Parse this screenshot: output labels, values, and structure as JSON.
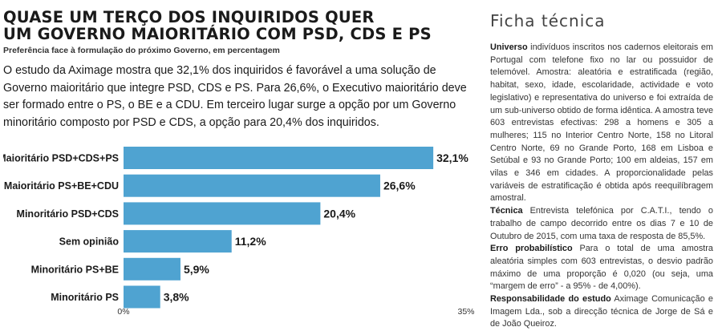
{
  "header": {
    "title_line1": "Quase um terço dos inquiridos quer",
    "title_line2": "um Governo maioritário com PSD, CDS e PS",
    "subtitle": "Preferência face à formulação do próximo Governo, em percentagem"
  },
  "intro": "O estudo da Aximage mostra que 32,1% dos inquiridos é favorável a uma solução de Governo maioritário que integre PSD, CDS e PS. Para 26,6%, o Executivo maioritário deve ser formado entre o PS, o BE e a CDU. Em terceiro lugar surge a opção por um Governo minoritário composto por PSD e CDS, a opção para 20,4% dos inquiridos.",
  "chart_data": {
    "type": "bar",
    "orientation": "horizontal",
    "title": "Preferência face à formulação do próximo Governo, em percentagem",
    "categories": [
      "Maioritário PSD+CDS+PS",
      "Maioritário PS+BE+CDU",
      "Minoritário PSD+CDS",
      "Sem opinião",
      "Minoritário PS+BE",
      "Minoritário PS"
    ],
    "values": [
      32.1,
      26.6,
      20.4,
      11.2,
      5.9,
      3.8
    ],
    "value_labels": [
      "32,1%",
      "26,6%",
      "20,4%",
      "11,2%",
      "5,9%",
      "3,8%"
    ],
    "xlim": [
      0,
      35
    ],
    "tick_labels": [
      "0%",
      "35%"
    ],
    "bar_color": "#4fa3d1",
    "grid": false
  },
  "ficha": {
    "title": "Ficha técnica",
    "universo_label": "Universo",
    "universo_text": " indivíduos inscritos nos cadernos eleitorais em Portugal com telefone fixo no lar ou possuidor de telemóvel. Amostra: aleatória e estratificada (região, habitat, sexo, idade, escolaridade, actividade e voto legislativo) e representativa do universo e foi extraída de um sub-universo obtido de forma idêntica. A amostra teve 603 entrevistas efectivas: 298 a homens e 305 a mulheres; 115 no Interior Centro Norte, 158 no Litoral Centro Norte, 69 no Grande Porto, 168 em Lisboa e Setúbal e 93 no Grande Porto; 100 em aldeias, 157 em vilas e 346 em cidades. A proporcionalidade pelas variáveis de estratificação é obtida após reequilíbragem amostral.",
    "tecnica_label": "Técnica",
    "tecnica_text": " Entrevista telefónica por C.A.T.I., tendo o trabalho de campo decorrido entre os dias 7 e 10 de Outubro de 2015, com uma taxa de resposta de 85,5%.",
    "erro_label": "Erro probabilístico",
    "erro_text": " Para o total de uma amostra aleatória simples com 603 entrevistas, o desvio padrão máximo de uma proporção é 0,020 (ou seja, uma “margem de erro” - a 95% - de 4,00%).",
    "resp_label": "Responsabilidade do estudo",
    "resp_text": " Aximage Comunicação e Imagem Lda., sob a direcção técnica de Jorge de Sá e de João Queiroz."
  }
}
